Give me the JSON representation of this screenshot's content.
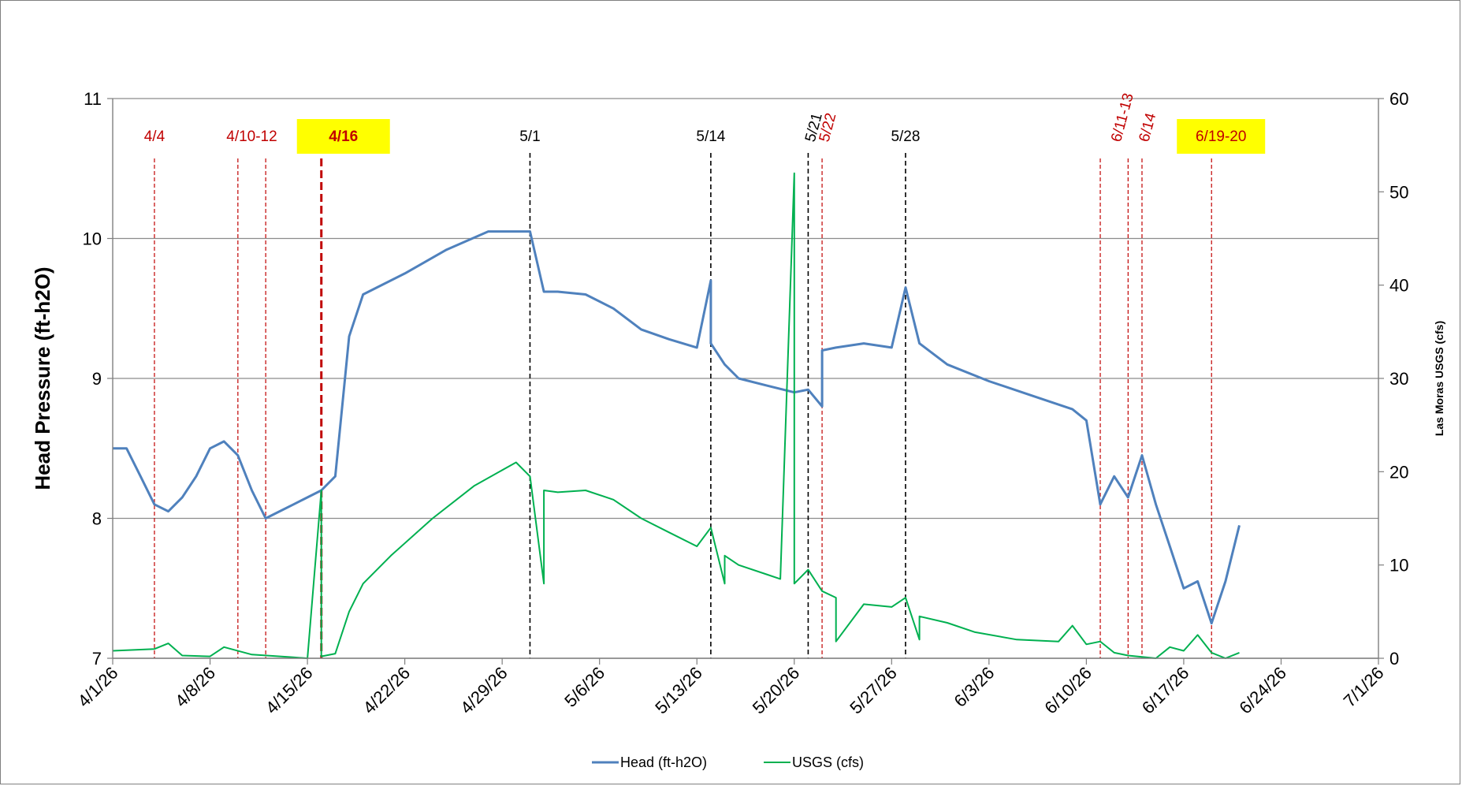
{
  "chart_data": {
    "type": "line",
    "title": "",
    "ylabel": "Head Pressure (ft-h2O)",
    "y2label": "Las Moras USGS (cfs)",
    "xlabel": "",
    "xlim": [
      "2026-04-01",
      "2026-07-01"
    ],
    "ylim": [
      7,
      11
    ],
    "y2lim": [
      0,
      60
    ],
    "grid": "horizontal",
    "legend_position": "bottom",
    "x_tick_labels": [
      "4/1/26",
      "4/8/26",
      "4/15/26",
      "4/22/26",
      "4/29/26",
      "5/6/26",
      "5/13/26",
      "5/20/26",
      "5/27/26",
      "6/3/26",
      "6/10/26",
      "6/17/26",
      "6/24/26",
      "7/1/26"
    ],
    "y_tick_labels": [
      "7",
      "8",
      "9",
      "10",
      "11"
    ],
    "y2_tick_labels": [
      "0",
      "10",
      "20",
      "30",
      "40",
      "50",
      "60"
    ],
    "series": [
      {
        "name": "Head (ft-h2O)",
        "color": "#4f81bd",
        "axis": "left",
        "x": [
          "2026-04-01",
          "2026-04-02",
          "2026-04-03",
          "2026-04-04",
          "2026-04-05",
          "2026-04-06",
          "2026-04-07",
          "2026-04-08",
          "2026-04-09",
          "2026-04-10",
          "2026-04-11",
          "2026-04-12",
          "2026-04-13",
          "2026-04-14",
          "2026-04-15",
          "2026-04-16",
          "2026-04-17",
          "2026-04-18",
          "2026-04-19",
          "2026-04-20",
          "2026-04-22",
          "2026-04-25",
          "2026-04-28",
          "2026-05-01",
          "2026-05-02",
          "2026-05-03",
          "2026-05-05",
          "2026-05-07",
          "2026-05-09",
          "2026-05-11",
          "2026-05-13",
          "2026-05-14",
          "2026-05-14",
          "2026-05-15",
          "2026-05-16",
          "2026-05-18",
          "2026-05-20",
          "2026-05-21",
          "2026-05-22",
          "2026-05-22",
          "2026-05-23",
          "2026-05-25",
          "2026-05-27",
          "2026-05-28",
          "2026-05-29",
          "2026-05-31",
          "2026-06-03",
          "2026-06-06",
          "2026-06-09",
          "2026-06-10",
          "2026-06-11",
          "2026-06-12",
          "2026-06-13",
          "2026-06-14",
          "2026-06-15",
          "2026-06-16",
          "2026-06-17",
          "2026-06-18",
          "2026-06-19",
          "2026-06-20",
          "2026-06-21"
        ],
        "values": [
          8.5,
          8.5,
          8.3,
          8.1,
          8.05,
          8.15,
          8.3,
          8.5,
          8.55,
          8.45,
          8.2,
          8.0,
          8.05,
          8.1,
          8.15,
          8.2,
          8.3,
          9.3,
          9.6,
          9.65,
          9.75,
          9.92,
          10.05,
          10.05,
          9.62,
          9.62,
          9.6,
          9.5,
          9.35,
          9.28,
          9.22,
          9.7,
          9.25,
          9.1,
          9.0,
          8.95,
          8.9,
          8.92,
          8.8,
          9.2,
          9.22,
          9.25,
          9.22,
          9.65,
          9.25,
          9.1,
          8.98,
          8.88,
          8.78,
          8.7,
          8.1,
          8.3,
          8.15,
          8.45,
          8.1,
          7.8,
          7.5,
          7.55,
          7.25,
          7.55,
          7.95
        ]
      },
      {
        "name": "USGS (cfs)",
        "color": "#00b050",
        "axis": "right",
        "x": [
          "2026-04-01",
          "2026-04-04",
          "2026-04-05",
          "2026-04-06",
          "2026-04-08",
          "2026-04-09",
          "2026-04-11",
          "2026-04-14",
          "2026-04-15",
          "2026-04-16",
          "2026-04-16",
          "2026-04-17",
          "2026-04-18",
          "2026-04-19",
          "2026-04-21",
          "2026-04-24",
          "2026-04-27",
          "2026-04-30",
          "2026-05-01",
          "2026-05-02",
          "2026-05-02",
          "2026-05-03",
          "2026-05-05",
          "2026-05-07",
          "2026-05-09",
          "2026-05-11",
          "2026-05-13",
          "2026-05-14",
          "2026-05-15",
          "2026-05-15",
          "2026-05-16",
          "2026-05-18",
          "2026-05-19",
          "2026-05-20",
          "2026-05-20",
          "2026-05-21",
          "2026-05-22",
          "2026-05-23",
          "2026-05-23",
          "2026-05-25",
          "2026-05-27",
          "2026-05-28",
          "2026-05-29",
          "2026-05-29",
          "2026-05-31",
          "2026-06-02",
          "2026-06-05",
          "2026-06-08",
          "2026-06-09",
          "2026-06-10",
          "2026-06-11",
          "2026-06-12",
          "2026-06-13",
          "2026-06-15",
          "2026-06-16",
          "2026-06-17",
          "2026-06-18",
          "2026-06-19",
          "2026-06-20",
          "2026-06-21"
        ],
        "values": [
          0.8,
          1.0,
          1.6,
          0.3,
          0.2,
          1.2,
          0.4,
          0.1,
          0.0,
          18.0,
          0.2,
          0.5,
          5.0,
          8.0,
          11.0,
          15.0,
          18.5,
          21.0,
          19.5,
          8.0,
          18.0,
          17.8,
          18.0,
          17.0,
          15.0,
          13.5,
          12.0,
          14.0,
          8.0,
          11.0,
          10.0,
          9.0,
          8.5,
          52.0,
          8.0,
          9.5,
          7.2,
          6.5,
          1.8,
          5.8,
          5.5,
          6.5,
          2.0,
          4.5,
          3.8,
          2.8,
          2.0,
          1.8,
          3.5,
          1.5,
          1.8,
          0.6,
          0.3,
          0.0,
          1.2,
          0.8,
          2.5,
          0.6,
          0.0,
          0.6
        ]
      }
    ],
    "annotations": [
      {
        "label": "4/4",
        "date": "2026-04-04",
        "style": "red-dashed",
        "color": "#c00000"
      },
      {
        "label": "4/10-12",
        "date": "2026-04-10",
        "date_end": "2026-04-12",
        "style": "red-dashed",
        "color": "#c00000"
      },
      {
        "label": "4/16",
        "date": "2026-04-16",
        "style": "red-dashed-thick",
        "color": "#c00000",
        "highlight": "#ffff00",
        "bold": true
      },
      {
        "label": "5/1",
        "date": "2026-05-01",
        "style": "black-dashed",
        "color": "#000000"
      },
      {
        "label": "5/14",
        "date": "2026-05-14",
        "style": "black-dashed",
        "color": "#000000"
      },
      {
        "label": "5/21",
        "date": "2026-05-21",
        "style": "black-dashed",
        "color": "#000000",
        "rotated": true
      },
      {
        "label": "5/22",
        "date": "2026-05-22",
        "style": "red-dashed",
        "color": "#c00000",
        "rotated": true
      },
      {
        "label": "5/28",
        "date": "2026-05-28",
        "style": "black-dashed",
        "color": "#000000"
      },
      {
        "label": "6/11-13",
        "date": "2026-06-11",
        "date_end": "2026-06-13",
        "style": "red-dashed",
        "color": "#c00000",
        "rotated": true
      },
      {
        "label": "6/14",
        "date": "2026-06-14",
        "style": "red-dashed",
        "color": "#c00000",
        "rotated": true
      },
      {
        "label": "6/19-20",
        "date": "2026-06-19",
        "style": "red-dashed",
        "color": "#c00000",
        "highlight": "#ffff00"
      }
    ]
  }
}
